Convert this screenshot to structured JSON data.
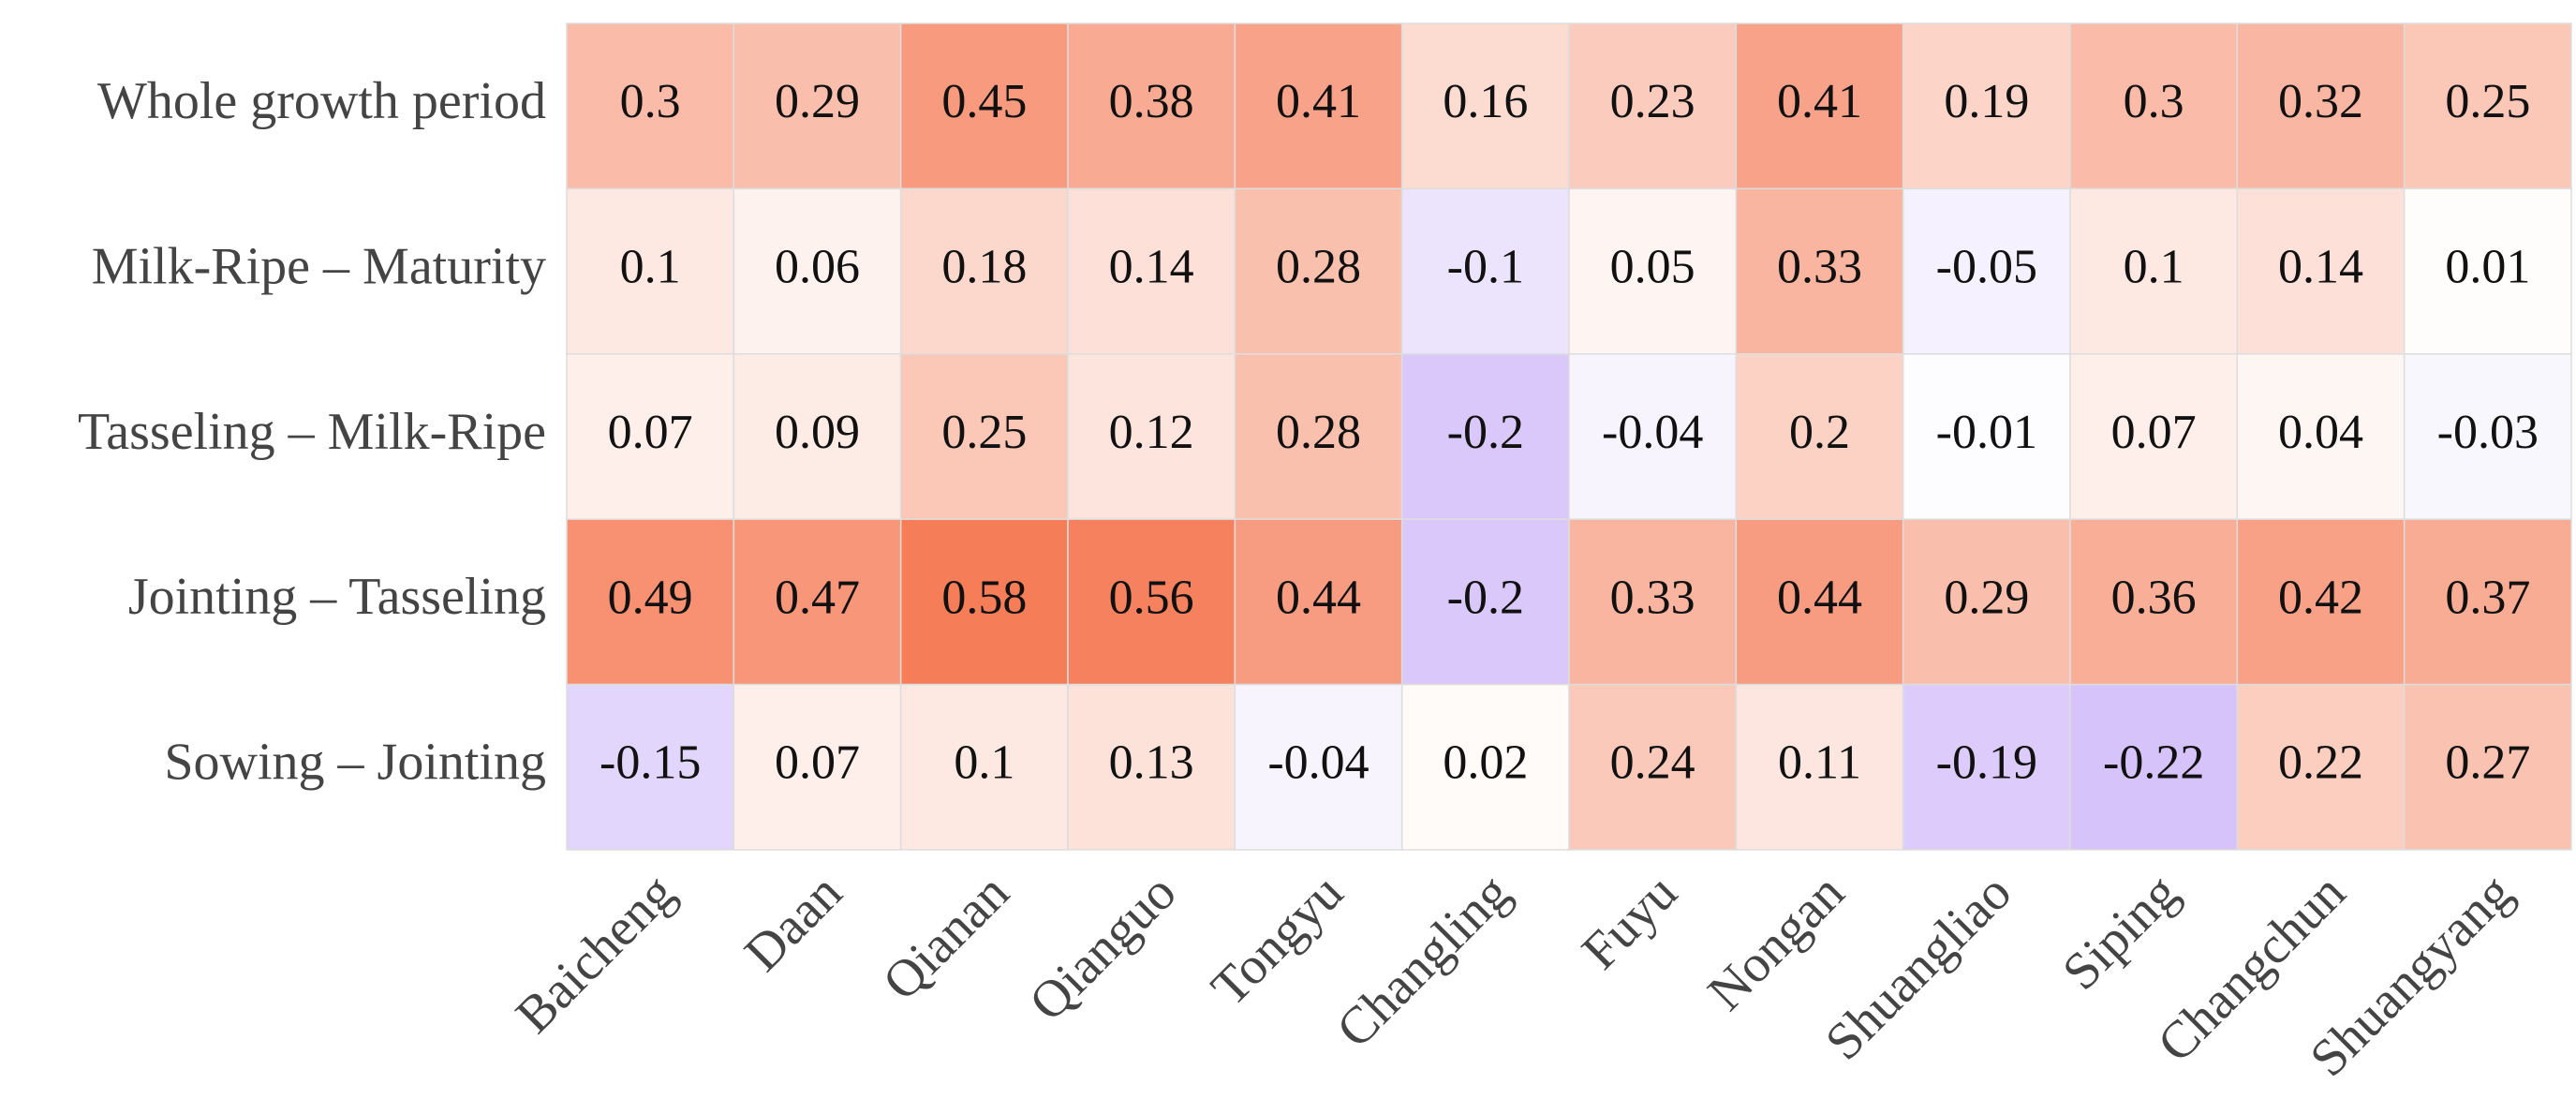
{
  "chart_data": {
    "type": "heatmap",
    "rows": [
      "Whole growth period",
      "Milk-Ripe – Maturity",
      "Tasseling – Milk-Ripe",
      "Jointing – Tasseling",
      "Sowing – Jointing"
    ],
    "columns": [
      "Baicheng",
      "Daan",
      "Qianan",
      "Qianguo",
      "Tongyu",
      "Changling",
      "Fuyu",
      "Nongan",
      "Shuangliao",
      "Siping",
      "Changchun",
      "Shuangyang"
    ],
    "values": [
      [
        0.3,
        0.29,
        0.45,
        0.38,
        0.41,
        0.16,
        0.23,
        0.41,
        0.19,
        0.3,
        0.32,
        0.25
      ],
      [
        0.1,
        0.06,
        0.18,
        0.14,
        0.28,
        -0.1,
        0.05,
        0.33,
        -0.05,
        0.1,
        0.14,
        0.01
      ],
      [
        0.07,
        0.09,
        0.25,
        0.12,
        0.28,
        -0.2,
        -0.04,
        0.2,
        -0.01,
        0.07,
        0.04,
        -0.03
      ],
      [
        0.49,
        0.47,
        0.58,
        0.56,
        0.44,
        -0.2,
        0.33,
        0.44,
        0.29,
        0.36,
        0.42,
        0.37
      ],
      [
        -0.15,
        0.07,
        0.1,
        0.13,
        -0.04,
        0.02,
        0.24,
        0.11,
        -0.19,
        -0.22,
        0.22,
        0.27
      ]
    ],
    "colors": {
      "low": "#d6c3fa",
      "mid": "#ffffff",
      "high": "#f57d58"
    }
  }
}
